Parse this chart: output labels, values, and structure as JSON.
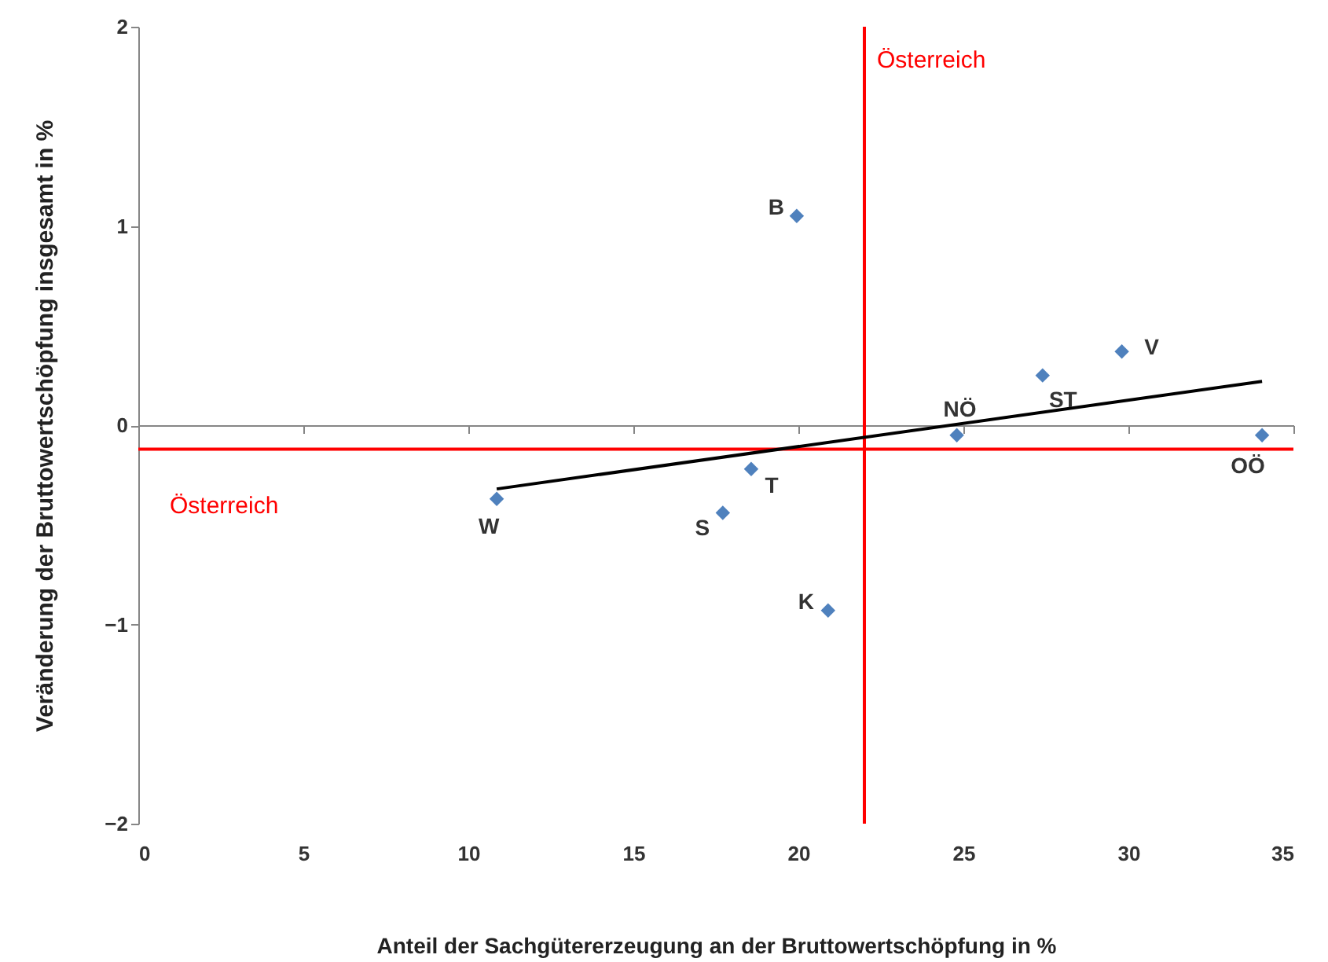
{
  "chart_data": {
    "type": "scatter",
    "xlabel": "Anteil der Sachgütererzeugung  an der Bruttowertschöpfung  in %",
    "ylabel": "Veränderung der Bruttowertschöpfung insgesamt in %",
    "xlim": [
      0,
      35
    ],
    "xticks": [
      0,
      5,
      10,
      15,
      20,
      25,
      30,
      35
    ],
    "ylim": [
      -2,
      2
    ],
    "yticks": [
      -2,
      -1,
      0,
      1,
      2
    ],
    "marker": "diamond",
    "series": [
      {
        "color": "#4f81bd",
        "x": [
          10.86,
          18.57,
          17.71,
          20.9,
          19.95,
          24.8,
          27.4,
          29.8,
          34.05
        ],
        "values": [
          -0.37,
          -0.22,
          -0.44,
          -0.93,
          1.05,
          -0.05,
          0.25,
          0.37,
          -0.05
        ]
      },
      {
        "type": "line",
        "color": "#000000",
        "marker": "none",
        "x": [
          10.86,
          34.05
        ],
        "values": [
          -0.32,
          0.22
        ]
      }
    ],
    "ref_lines": [
      {
        "axis": "x",
        "value": 22,
        "label": "Österreich",
        "color": "#ff0000"
      },
      {
        "axis": "y",
        "value": -0.12,
        "label": "Österreich",
        "color": "#ff0000"
      }
    ],
    "annotations": [
      {
        "text": "W",
        "x": 10.86,
        "y": -0.37
      },
      {
        "text": "T",
        "x": 18.57,
        "y": -0.22
      },
      {
        "text": "S",
        "x": 17.71,
        "y": -0.44
      },
      {
        "text": "K",
        "x": 20.9,
        "y": -0.93
      },
      {
        "text": "B",
        "x": 19.95,
        "y": 1.05
      },
      {
        "text": "NÖ",
        "x": 24.8,
        "y": -0.05
      },
      {
        "text": "ST",
        "x": 27.4,
        "y": 0.25
      },
      {
        "text": "V",
        "x": 29.8,
        "y": 0.37
      },
      {
        "text": "OÖ",
        "x": 34.05,
        "y": -0.05
      }
    ]
  }
}
